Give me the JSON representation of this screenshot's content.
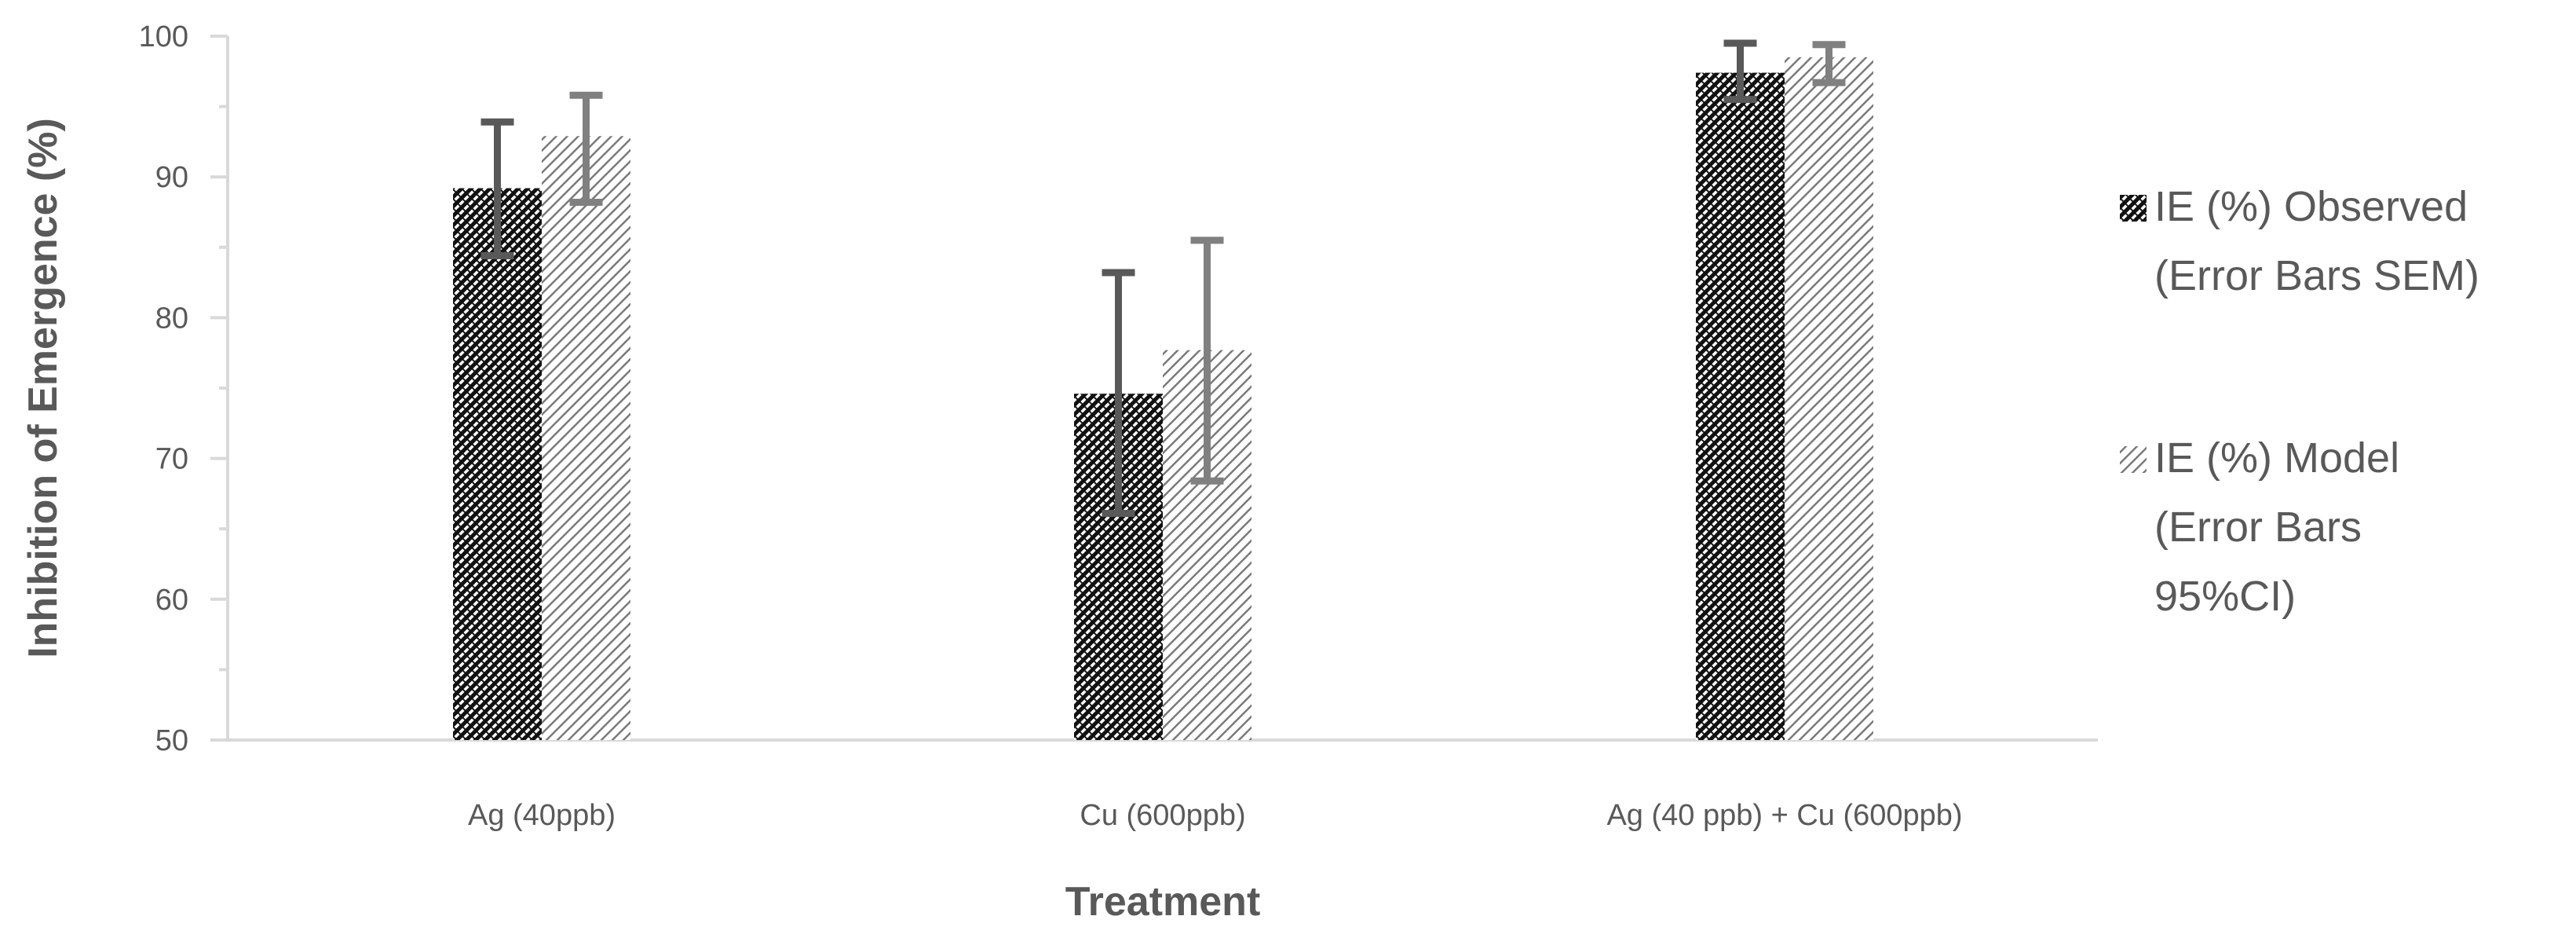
{
  "chart_data": {
    "type": "bar",
    "title": "",
    "xlabel": "Treatment",
    "ylabel": "Inhibition of Emergence (%)",
    "ylim": [
      50,
      100
    ],
    "yticks": [
      50,
      60,
      70,
      80,
      90,
      100
    ],
    "categories": [
      "Ag (40ppb)",
      "Cu (600ppb)",
      "Ag (40 ppb) + Cu (600ppb)"
    ],
    "series": [
      {
        "name": "IE (%) Observed",
        "legend_label_lines": [
          "IE (%) Observed",
          "(Error Bars SEM)"
        ],
        "values": [
          89.2,
          74.6,
          97.4
        ],
        "error_low": [
          84.4,
          66.1,
          95.5
        ],
        "error_high": [
          93.9,
          83.2,
          99.5
        ],
        "hatch": "dense-backslash",
        "error_bar_color": "#595959"
      },
      {
        "name": "IE (%) Model",
        "legend_label_lines": [
          "IE (%) Model",
          "(Error Bars",
          "95%CI)"
        ],
        "values": [
          92.9,
          77.7,
          98.5
        ],
        "error_low": [
          88.2,
          68.4,
          96.7
        ],
        "error_high": [
          95.8,
          85.5,
          99.4
        ],
        "hatch": "sparse-slash",
        "error_bar_color": "#808080"
      }
    ],
    "grid": false,
    "legend_position": "right"
  }
}
